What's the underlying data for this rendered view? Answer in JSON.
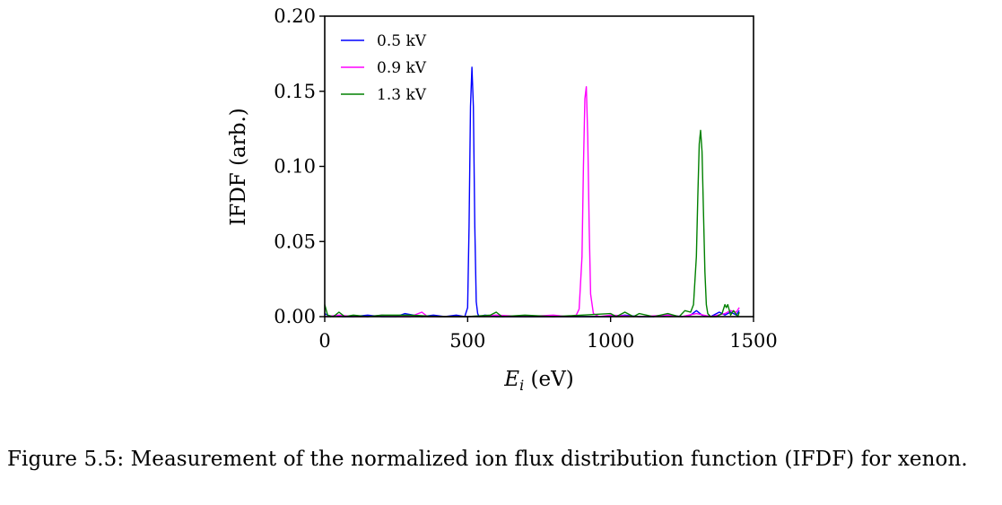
{
  "chart_data": {
    "type": "line",
    "title": "",
    "xlabel_var": "E",
    "xlabel_sub": "i",
    "xlabel_unit": " (eV)",
    "ylabel": "IFDF (arb.)",
    "xlim": [
      0,
      1500
    ],
    "ylim": [
      0,
      0.2
    ],
    "xticks": [
      0,
      500,
      1000,
      1500
    ],
    "xtick_labels": [
      "0",
      "500",
      "1000",
      "1500"
    ],
    "yticks": [
      0,
      0.05,
      0.1,
      0.15,
      0.2
    ],
    "ytick_labels": [
      "0.00",
      "0.05",
      "0.10",
      "0.15",
      "0.20"
    ],
    "grid": false,
    "legend_position": "top-left",
    "series": [
      {
        "name": "0.5 kV",
        "color": "#0000ff",
        "x": [
          0,
          20,
          40,
          60,
          100,
          150,
          200,
          250,
          280,
          310,
          340,
          380,
          420,
          460,
          490,
          500,
          505,
          510,
          515,
          520,
          525,
          530,
          535,
          540,
          560,
          600,
          700,
          800,
          900,
          1000,
          1050,
          1100,
          1150,
          1200,
          1250,
          1280,
          1300,
          1320,
          1350,
          1380,
          1400,
          1420,
          1440,
          1450
        ],
        "y": [
          0.002,
          0.0,
          0.001,
          0.0,
          0.0,
          0.001,
          0.0,
          0.0,
          0.002,
          0.001,
          0.0,
          0.001,
          0.0,
          0.001,
          0.0,
          0.006,
          0.06,
          0.14,
          0.166,
          0.14,
          0.06,
          0.01,
          0.002,
          0.0,
          0.001,
          0.0,
          0.0,
          0.0,
          0.0,
          0.0,
          0.001,
          0.0,
          0.0,
          0.001,
          0.0,
          0.001,
          0.004,
          0.001,
          0.0,
          0.003,
          0.001,
          0.003,
          0.001,
          0.004
        ]
      },
      {
        "name": "0.9 kV",
        "color": "#ff00ff",
        "x": [
          0,
          50,
          100,
          150,
          200,
          250,
          300,
          340,
          360,
          400,
          500,
          600,
          700,
          800,
          850,
          880,
          890,
          900,
          905,
          910,
          915,
          920,
          925,
          930,
          940,
          960,
          1000,
          1100,
          1200,
          1250,
          1300,
          1350,
          1400,
          1420,
          1440,
          1450
        ],
        "y": [
          0.0,
          0.001,
          0.0,
          0.0,
          0.001,
          0.0,
          0.0,
          0.003,
          0.0,
          0.0,
          0.0,
          0.001,
          0.0,
          0.001,
          0.0,
          0.001,
          0.005,
          0.04,
          0.1,
          0.145,
          0.153,
          0.12,
          0.06,
          0.015,
          0.002,
          0.0,
          0.001,
          0.0,
          0.001,
          0.0,
          0.002,
          0.0,
          0.002,
          0.004,
          0.003,
          0.006
        ]
      },
      {
        "name": "1.3 kV",
        "color": "#008000",
        "x": [
          0,
          10,
          30,
          50,
          70,
          100,
          150,
          200,
          300,
          400,
          500,
          580,
          600,
          620,
          700,
          800,
          900,
          1000,
          1020,
          1050,
          1080,
          1100,
          1150,
          1200,
          1240,
          1260,
          1280,
          1290,
          1300,
          1305,
          1310,
          1315,
          1320,
          1325,
          1330,
          1335,
          1340,
          1350,
          1370,
          1390,
          1400,
          1405,
          1410,
          1420,
          1430,
          1445,
          1450
        ],
        "y": [
          0.008,
          0.001,
          0.0,
          0.003,
          0.0,
          0.001,
          0.0,
          0.001,
          0.001,
          0.0,
          0.0,
          0.001,
          0.003,
          0.0,
          0.001,
          0.0,
          0.001,
          0.002,
          0.0,
          0.003,
          0.0,
          0.002,
          0.0,
          0.002,
          0.0,
          0.004,
          0.003,
          0.008,
          0.04,
          0.08,
          0.115,
          0.124,
          0.11,
          0.07,
          0.03,
          0.008,
          0.002,
          0.0,
          0.0,
          0.002,
          0.008,
          0.006,
          0.008,
          0.001,
          0.004,
          0.0,
          0.003
        ]
      }
    ]
  },
  "caption": {
    "text": "Figure 5.5: Measurement of the normalized ion flux distribution function (IFDF) for xenon."
  }
}
